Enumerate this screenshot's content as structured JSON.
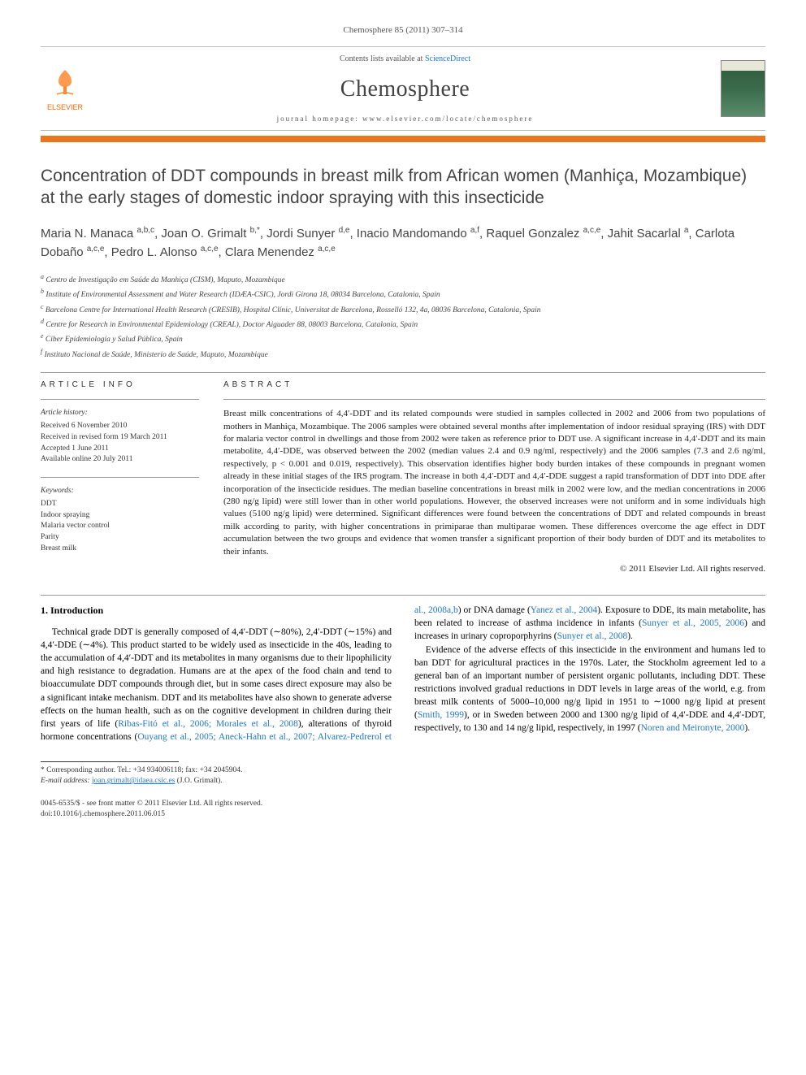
{
  "citation": "Chemosphere 85 (2011) 307–314",
  "header": {
    "contents_prefix": "Contents lists available at ",
    "contents_link": "ScienceDirect",
    "journal": "Chemosphere",
    "homepage_prefix": "journal homepage: ",
    "homepage_url": "www.elsevier.com/locate/chemosphere",
    "publisher_name": "ELSEVIER"
  },
  "title": "Concentration of DDT compounds in breast milk from African women (Manhiça, Mozambique) at the early stages of domestic indoor spraying with this insecticide",
  "authors_html": "Maria N. Manaca <sup>a,b,c</sup>, Joan O. Grimalt <sup>b,*</sup>, Jordi Sunyer <sup>d,e</sup>, Inacio Mandomando <sup>a,f</sup>, Raquel Gonzalez <sup>a,c,e</sup>, Jahit Sacarlal <sup>a</sup>, Carlota Dobaño <sup>a,c,e</sup>, Pedro L. Alonso <sup>a,c,e</sup>, Clara Menendez <sup>a,c,e</sup>",
  "affiliations": [
    "a Centro de Investigação em Saúde da Manhiça (CISM), Maputo, Mozambique",
    "b Institute of Environmental Assessment and Water Research (IDÆA-CSIC), Jordi Girona 18, 08034 Barcelona, Catalonia, Spain",
    "c Barcelona Centre for International Health Research (CRESIB), Hospital Clínic, Universitat de Barcelona, Rosselló 132, 4a, 08036 Barcelona, Catalonia, Spain",
    "d Centre for Research in Environmental Epidemiology (CREAL), Doctor Aiguader 88, 08003 Barcelona, Catalonia, Spain",
    "e Ciber Epidemiología y Salud Pública, Spain",
    "f Instituto Nacional de Saúde, Ministerio de Saúde, Maputo, Mozambique"
  ],
  "article_info": {
    "heading": "ARTICLE INFO",
    "history_label": "Article history:",
    "history": [
      "Received 6 November 2010",
      "Received in revised form 19 March 2011",
      "Accepted 1 June 2011",
      "Available online 20 July 2011"
    ],
    "keywords_label": "Keywords:",
    "keywords": [
      "DDT",
      "Indoor spraying",
      "Malaria vector control",
      "Parity",
      "Breast milk"
    ]
  },
  "abstract": {
    "heading": "ABSTRACT",
    "text": "Breast milk concentrations of 4,4′-DDT and its related compounds were studied in samples collected in 2002 and 2006 from two populations of mothers in Manhiça, Mozambique. The 2006 samples were obtained several months after implementation of indoor residual spraying (IRS) with DDT for malaria vector control in dwellings and those from 2002 were taken as reference prior to DDT use. A significant increase in 4,4′-DDT and its main metabolite, 4,4′-DDE, was observed between the 2002 (median values 2.4 and 0.9 ng/ml, respectively) and the 2006 samples (7.3 and 2.6 ng/ml, respectively, p < 0.001 and 0.019, respectively). This observation identifies higher body burden intakes of these compounds in pregnant women already in these initial stages of the IRS program. The increase in both 4,4′-DDT and 4,4′-DDE suggest a rapid transformation of DDT into DDE after incorporation of the insecticide residues. The median baseline concentrations in breast milk in 2002 were low, and the median concentrations in 2006 (280 ng/g lipid) were still lower than in other world populations. However, the observed increases were not uniform and in some individuals high values (5100 ng/g lipid) were determined. Significant differences were found between the concentrations of DDT and related compounds in breast milk according to parity, with higher concentrations in primiparae than multiparae women. These differences overcome the age effect in DDT accumulation between the two groups and evidence that women transfer a significant proportion of their body burden of DDT and its metabolites to their infants.",
    "copyright": "© 2011 Elsevier Ltd. All rights reserved."
  },
  "intro": {
    "heading": "1. Introduction",
    "p1_a": "Technical grade DDT is generally composed of 4,4′-DDT (∼80%), 2,4′-DDT (∼15%) and 4,4′-DDE (∼4%). This product started to be widely used as insecticide in the 40s, leading to the accumulation of 4,4′-DDT and its metabolites in many organisms due to their lipophilicity and high resistance to degradation. Humans are at the apex of the food chain and tend to bioaccumulate DDT compounds through diet, but in some cases direct exposure may also be a significant intake mechanism. DDT and its metabolites have also shown to generate adverse effects on the human health, such as on the cognitive development in children during their first years of life (",
    "p1_cite1": "Ribas-Fitó et al., 2006; Morales et al., 2008",
    "p1_b": "), alterations of thyroid hormone concentrations (",
    "p1_cite2": "Ouyang et al., 2005; Aneck-Hahn et al., 2007; Alvarez-Pedrerol et al., 2008a,b",
    "p1_c": ") or DNA damage (",
    "p1_cite3": "Yanez et al., 2004",
    "p1_d": "). Exposure to DDE, its main metabolite, has been related to increase of asthma incidence in infants (",
    "p1_cite4": "Sunyer et al., 2005, 2006",
    "p1_e": ") and increases in urinary coproporphyrins (",
    "p1_cite5": "Sunyer et al., 2008",
    "p1_f": ").",
    "p2_a": "Evidence of the adverse effects of this insecticide in the environment and humans led to ban DDT for agricultural practices in the 1970s. Later, the Stockholm agreement led to a general ban of an important number of persistent organic pollutants, including DDT. These restrictions involved gradual reductions in DDT levels in large areas of the world, e.g. from breast milk contents of 5000–10,000 ng/g lipid in 1951 to ∼1000 ng/g lipid at present (",
    "p2_cite1": "Smith, 1999",
    "p2_b": "), or in Sweden between 2000 and 1300 ng/g lipid of 4,4′-DDE and 4,4′-DDT, respectively, to 130 and 14 ng/g lipid, respectively, in 1997 (",
    "p2_cite2": "Noren and Meironyte, 2000",
    "p2_c": ")."
  },
  "corresponding": {
    "label": "* Corresponding author. Tel.: +34 934006118; fax: +34 2045904.",
    "email_label": "E-mail address: ",
    "email": "joan.grimalt@idaea.csic.es",
    "email_who": " (J.O. Grimalt)."
  },
  "footer": {
    "left1": "0045-6535/$ - see front matter © 2011 Elsevier Ltd. All rights reserved.",
    "left2": "doi:10.1016/j.chemosphere.2011.06.015"
  },
  "colors": {
    "accent_orange": "#e8761f",
    "link_blue": "#2277cc",
    "text_gray": "#444444"
  }
}
